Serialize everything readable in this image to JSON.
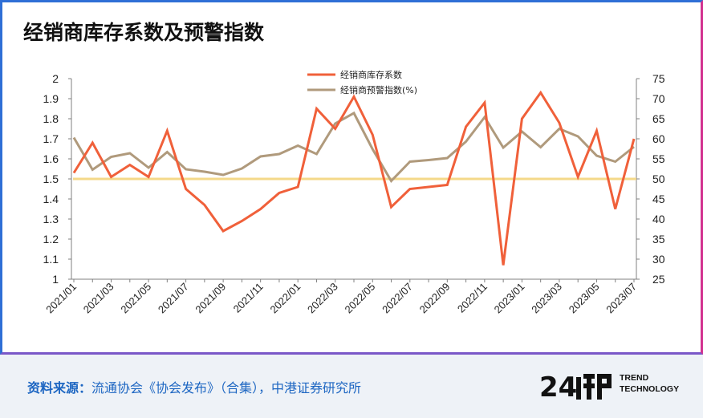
{
  "title": "经销商库存系数及预警指数",
  "footer": {
    "source_label": "资料来源：",
    "source_text": "流通协会《协会发布》（合集），中港证券研究所",
    "logo_line1": "TREND",
    "logo_line2": "TECHNOLOGY"
  },
  "colors": {
    "inventory": "#f0603a",
    "warning": "#b09a7c",
    "threshold": "#f4d98a",
    "frame": "#2f6fd6"
  },
  "chart_data": {
    "type": "line",
    "title": "经销商库存系数及预警指数",
    "categories": [
      "2021/01",
      "2021/02",
      "2021/03",
      "2021/04",
      "2021/05",
      "2021/06",
      "2021/07",
      "2021/08",
      "2021/09",
      "2021/10",
      "2021/11",
      "2021/12",
      "2022/01",
      "2022/02",
      "2022/03",
      "2022/04",
      "2022/05",
      "2022/06",
      "2022/07",
      "2022/08",
      "2022/09",
      "2022/10",
      "2022/11",
      "2022/12",
      "2023/01",
      "2023/02",
      "2023/03",
      "2023/04",
      "2023/05",
      "2023/06",
      "2023/07"
    ],
    "x_tick_labels": [
      "2021/01",
      "2021/03",
      "2021/05",
      "2021/07",
      "2021/09",
      "2021/11",
      "2022/01",
      "2022/03",
      "2022/05",
      "2022/07",
      "2022/09",
      "2022/11",
      "2023/01",
      "2023/03",
      "2023/05",
      "2023/07"
    ],
    "series": [
      {
        "name": "经销商库存系数",
        "axis": "left",
        "values": [
          1.53,
          1.68,
          1.51,
          1.57,
          1.51,
          1.74,
          1.45,
          1.37,
          1.24,
          1.29,
          1.35,
          1.43,
          1.46,
          1.85,
          1.75,
          1.91,
          1.72,
          1.36,
          1.45,
          1.46,
          1.47,
          1.76,
          1.88,
          1.07,
          1.8,
          1.93,
          1.78,
          1.51,
          1.74,
          1.35,
          1.7
        ]
      },
      {
        "name": "经销商预警指数(%)",
        "axis": "right",
        "values": [
          60.3,
          52.3,
          55.5,
          56.4,
          52.8,
          56.7,
          52.4,
          51.8,
          51.0,
          52.6,
          55.6,
          56.2,
          58.3,
          56.2,
          63.8,
          66.4,
          57.4,
          49.5,
          54.3,
          54.7,
          55.2,
          59.3,
          65.4,
          57.8,
          61.8,
          57.9,
          62.5,
          60.6,
          55.8,
          54.3,
          58.0
        ]
      }
    ],
    "threshold": {
      "axis": "right",
      "value": 50
    },
    "y_left": {
      "min": 1,
      "max": 2,
      "ticks": [
        "1",
        "1.1",
        "1.2",
        "1.3",
        "1.4",
        "1.5",
        "1.6",
        "1.7",
        "1.8",
        "1.9",
        "2"
      ]
    },
    "y_right": {
      "min": 25,
      "max": 75,
      "ticks": [
        "25",
        "30",
        "35",
        "40",
        "45",
        "50",
        "55",
        "60",
        "65",
        "70",
        "75"
      ]
    },
    "legend_position": "top-center",
    "grid": false
  }
}
